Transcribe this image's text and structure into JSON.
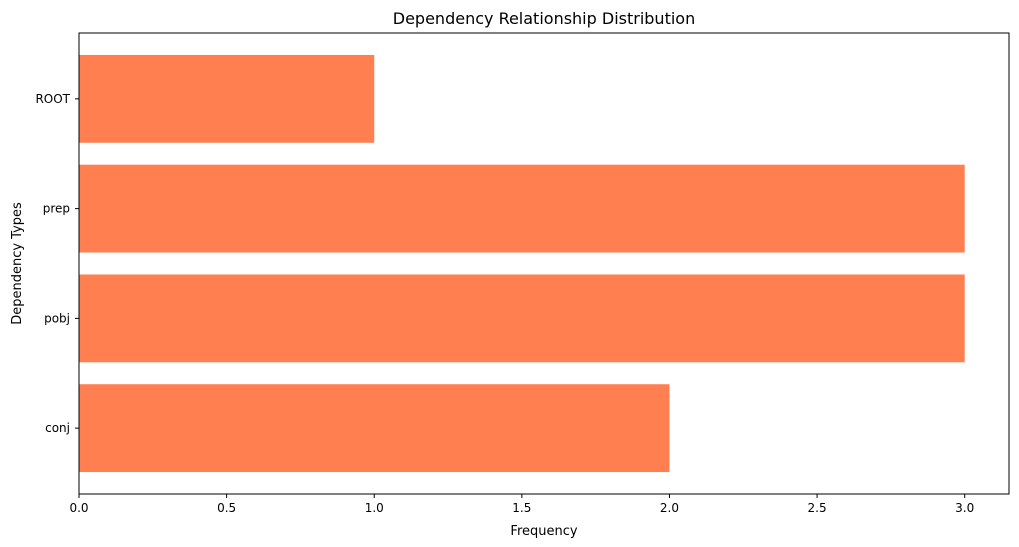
{
  "chart_data": {
    "type": "bar",
    "orientation": "horizontal",
    "title": "Dependency Relationship Distribution",
    "xlabel": "Frequency",
    "ylabel": "Dependency Types",
    "categories": [
      "conj",
      "pobj",
      "prep",
      "ROOT"
    ],
    "values": [
      2,
      3,
      3,
      1
    ],
    "xlim": [
      0,
      3.15
    ],
    "xticks": [
      0.0,
      0.5,
      1.0,
      1.5,
      2.0,
      2.5,
      3.0
    ],
    "xtick_labels": [
      "0.0",
      "0.5",
      "1.0",
      "1.5",
      "2.0",
      "2.5",
      "3.0"
    ],
    "bar_color": "#FF7F50",
    "grid": false,
    "legend": "none"
  }
}
